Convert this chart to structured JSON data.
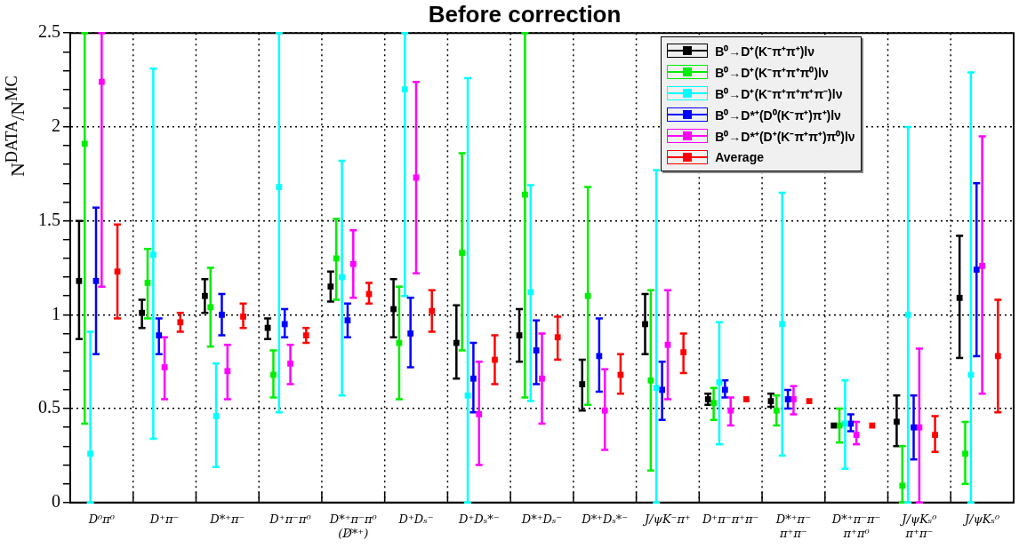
{
  "chart_data": {
    "type": "scatter",
    "title": "Before correction",
    "ylabel": "N$^{DATA}$/N$^{MC}$",
    "categories": [
      "D⁰π⁰",
      "D⁺π⁻",
      "D*⁺π⁻",
      "D⁺π⁻π⁰",
      "D*⁺π⁻π⁰\n(D̸*⁺)",
      "D⁺Dₛ⁻",
      "D⁺Dₛ*⁻",
      "D*⁺Dₛ⁻",
      "D*⁺Dₛ*⁻",
      "J/ψK⁻π⁺",
      "D⁺π⁻π⁺π⁻",
      "D*⁺π⁻π⁺π⁻",
      "D*⁺π⁻π⁻π⁺π⁰",
      "J/ψKₛ⁰π⁺π⁻",
      "J/ψKₛ⁰"
    ],
    "series": [
      {
        "name": "B⁰→D⁺(K⁻π⁺π⁺)lν",
        "color": "#000000",
        "values": [
          1.18,
          1.01,
          1.1,
          0.93,
          1.15,
          1.03,
          0.85,
          0.89,
          0.63,
          0.95,
          0.55,
          0.54,
          0.41,
          0.43,
          1.09
        ],
        "errors": [
          [
            0.87,
            1.5
          ],
          [
            0.93,
            1.08
          ],
          [
            1.01,
            1.19
          ],
          [
            0.87,
            0.98
          ],
          [
            1.07,
            1.23
          ],
          [
            0.88,
            1.19
          ],
          [
            0.66,
            1.05
          ],
          [
            0.75,
            1.03
          ],
          [
            0.49,
            0.76
          ],
          [
            0.79,
            1.11
          ],
          [
            0.52,
            0.58
          ],
          [
            0.51,
            0.58
          ],
          null,
          [
            0.3,
            0.57
          ],
          [
            0.77,
            1.42
          ]
        ]
      },
      {
        "name": "B⁰→D⁺(K⁻π⁺π⁺π⁰)lν",
        "color": "#00ee00",
        "values": [
          1.91,
          1.17,
          1.04,
          0.68,
          1.3,
          0.85,
          1.33,
          1.64,
          1.1,
          0.65,
          0.53,
          0.49,
          0.41,
          0.09,
          0.26
        ],
        "errors": [
          [
            0.42,
            2.5
          ],
          [
            0.98,
            1.35
          ],
          [
            0.83,
            1.25
          ],
          [
            0.56,
            0.81
          ],
          [
            1.08,
            1.51
          ],
          [
            0.55,
            1.15
          ],
          [
            0.81,
            1.86
          ],
          [
            0.56,
            2.5
          ],
          [
            0.52,
            1.68
          ],
          [
            0.17,
            1.13
          ],
          [
            0.44,
            0.61
          ],
          [
            0.41,
            0.57
          ],
          [
            0.32,
            0.5
          ],
          [
            0,
            0.3
          ],
          [
            0.1,
            0.43
          ]
        ]
      },
      {
        "name": "B⁰→D⁺(K⁻π⁺π⁺π⁺π⁻)lν",
        "color": "#00ffff",
        "values": [
          0.26,
          1.32,
          0.46,
          1.68,
          1.2,
          2.2,
          0.57,
          1.12,
          null,
          0.61,
          0.64,
          0.95,
          0.42,
          1.0,
          0.68
        ],
        "errors": [
          [
            0,
            0.91
          ],
          [
            0.34,
            2.31
          ],
          [
            0.19,
            0.74
          ],
          [
            0.48,
            2.5
          ],
          [
            0.57,
            1.82
          ],
          [
            1.1,
            2.5
          ],
          [
            0,
            2.26
          ],
          [
            0.54,
            1.69
          ],
          null,
          [
            0,
            1.77
          ],
          [
            0.31,
            0.96
          ],
          [
            0.25,
            1.65
          ],
          [
            0.18,
            0.65
          ],
          [
            0,
            2.0
          ],
          [
            0,
            2.29
          ]
        ]
      },
      {
        "name": "B⁰→D*⁺(D⁰(K⁻π⁺)π⁺)lν",
        "color": "#0000ff",
        "values": [
          1.18,
          0.89,
          1.0,
          0.95,
          0.97,
          0.9,
          0.66,
          0.81,
          0.78,
          0.6,
          0.6,
          0.55,
          0.42,
          0.4,
          1.24
        ],
        "errors": [
          [
            0.79,
            1.57
          ],
          [
            0.79,
            0.98
          ],
          [
            0.89,
            1.11
          ],
          [
            0.88,
            1.03
          ],
          [
            0.88,
            1.06
          ],
          [
            0.72,
            1.09
          ],
          [
            0.48,
            0.85
          ],
          [
            0.63,
            0.97
          ],
          [
            0.59,
            0.98
          ],
          [
            0.44,
            0.75
          ],
          [
            0.56,
            0.65
          ],
          [
            0.5,
            0.6
          ],
          [
            0.38,
            0.47
          ],
          [
            0.23,
            0.57
          ],
          [
            0.78,
            1.7
          ]
        ]
      },
      {
        "name": "B⁰→D*⁺(D⁺(K⁻π⁺π⁺)π⁰)lν",
        "color": "#ff00ff",
        "values": [
          2.24,
          0.72,
          0.7,
          0.74,
          1.27,
          1.73,
          0.47,
          0.66,
          0.49,
          0.84,
          0.49,
          0.55,
          0.36,
          0.4,
          1.26
        ],
        "errors": [
          [
            1.15,
            2.5
          ],
          [
            0.55,
            0.88
          ],
          [
            0.55,
            0.84
          ],
          [
            0.63,
            0.84
          ],
          [
            1.09,
            1.45
          ],
          [
            1.22,
            2.24
          ],
          [
            0.2,
            0.75
          ],
          [
            0.42,
            0.9
          ],
          [
            0.28,
            0.71
          ],
          [
            0.55,
            1.13
          ],
          [
            0.41,
            0.56
          ],
          [
            0.47,
            0.62
          ],
          [
            0.31,
            0.43
          ],
          [
            0,
            0.82
          ],
          [
            0.58,
            1.95
          ]
        ]
      },
      {
        "name": "Average",
        "color": "#ff0000",
        "values": [
          1.23,
          0.96,
          0.99,
          0.89,
          1.11,
          1.02,
          0.76,
          0.88,
          0.68,
          0.8,
          0.55,
          0.54,
          0.41,
          0.36,
          0.78
        ],
        "errors": [
          [
            0.98,
            1.48
          ],
          [
            0.91,
            1.01
          ],
          [
            0.93,
            1.06
          ],
          [
            0.85,
            0.93
          ],
          [
            1.06,
            1.17
          ],
          [
            0.91,
            1.13
          ],
          [
            0.63,
            0.89
          ],
          [
            0.76,
            0.99
          ],
          [
            0.58,
            0.79
          ],
          [
            0.69,
            0.9
          ],
          null,
          null,
          null,
          [
            0.27,
            0.46
          ],
          [
            0.48,
            1.08
          ]
        ]
      }
    ],
    "ylim": [
      0,
      2.5
    ],
    "yticks": [
      0,
      {
        "value": 0.1,
        "label": null
      },
      {
        "value": 0.2,
        "label": null
      },
      {
        "value": 0.3,
        "label": null
      },
      {
        "value": 0.4,
        "label": null
      },
      0.5,
      {
        "value": 0.6,
        "label": null
      },
      {
        "value": 0.7,
        "label": null
      },
      {
        "value": 0.8,
        "label": null
      },
      {
        "value": 0.9,
        "label": null
      },
      1,
      {
        "value": 1.1,
        "label": null
      },
      {
        "value": 1.2,
        "label": null
      },
      {
        "value": 1.3,
        "label": null
      },
      {
        "value": 1.4,
        "label": null
      },
      1.5,
      {
        "value": 1.6,
        "label": null
      },
      {
        "value": 1.7,
        "label": null
      },
      {
        "value": 1.8,
        "label": null
      },
      {
        "value": 1.9,
        "label": null
      },
      2,
      {
        "value": 2.1,
        "label": null
      },
      {
        "value": 2.2,
        "label": null
      },
      {
        "value": 2.3,
        "label": null
      },
      {
        "value": 2.4,
        "label": null
      },
      2.5
    ],
    "grid": true,
    "legend": "top right",
    "marker": "square"
  }
}
